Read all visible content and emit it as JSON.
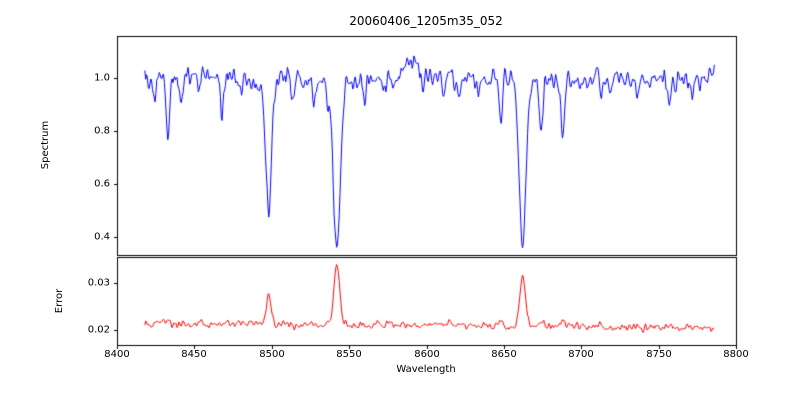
{
  "chart_data": {
    "type": "line",
    "title": "20060406_1205m35_052",
    "xlabel": "Wavelength",
    "grid": false,
    "legend": "none",
    "xlim": [
      8400,
      8800
    ],
    "x_ticks": [
      "8400",
      "8450",
      "8500",
      "8550",
      "8600",
      "8650",
      "8700",
      "8750",
      "8800"
    ],
    "x_sample": {
      "start": 8418,
      "end": 8786,
      "n": 672
    },
    "panels": [
      {
        "ylabel": "Spectrum",
        "color": "#0000ff",
        "ylim": [
          0.33,
          1.16
        ],
        "y_ticks": [
          "0.4",
          "0.6",
          "0.8",
          "1.0"
        ],
        "series": {
          "name": "spectrum",
          "seed": 7,
          "baseline_start": 1.0,
          "baseline_end": 0.995,
          "noise_sigma": 0.02,
          "absorption_lines": [
            {
              "center": 8424,
              "depth": 0.1,
              "width": 0.9
            },
            {
              "center": 8433,
              "depth": 0.22,
              "width": 1.1
            },
            {
              "center": 8441,
              "depth": 0.09,
              "width": 0.9
            },
            {
              "center": 8453,
              "depth": 0.06,
              "width": 0.9
            },
            {
              "center": 8468,
              "depth": 0.13,
              "width": 1.0
            },
            {
              "center": 8480,
              "depth": 0.06,
              "width": 0.9
            },
            {
              "center": 8492,
              "depth": 0.08,
              "width": 0.9
            },
            {
              "center": 8498.02,
              "depth": 0.5,
              "width": 1.9
            },
            {
              "center": 8514,
              "depth": 0.1,
              "width": 1.0
            },
            {
              "center": 8527,
              "depth": 0.08,
              "width": 0.9
            },
            {
              "center": 8536,
              "depth": 0.1,
              "width": 1.0
            },
            {
              "center": 8542.09,
              "depth": 0.64,
              "width": 2.3
            },
            {
              "center": 8560,
              "depth": 0.08,
              "width": 0.9
            },
            {
              "center": 8572,
              "depth": 0.06,
              "width": 0.9
            },
            {
              "center": 8598,
              "depth": 0.07,
              "width": 0.9
            },
            {
              "center": 8611,
              "depth": 0.07,
              "width": 0.9
            },
            {
              "center": 8621,
              "depth": 0.09,
              "width": 1.0
            },
            {
              "center": 8634,
              "depth": 0.07,
              "width": 0.9
            },
            {
              "center": 8648,
              "depth": 0.16,
              "width": 1.1
            },
            {
              "center": 8662.14,
              "depth": 0.62,
              "width": 2.2
            },
            {
              "center": 8674,
              "depth": 0.19,
              "width": 1.1
            },
            {
              "center": 8688,
              "depth": 0.24,
              "width": 1.2
            },
            {
              "center": 8713,
              "depth": 0.08,
              "width": 0.9
            },
            {
              "center": 8736,
              "depth": 0.07,
              "width": 0.9
            },
            {
              "center": 8757,
              "depth": 0.1,
              "width": 1.0
            },
            {
              "center": 8772,
              "depth": 0.07,
              "width": 0.9
            }
          ],
          "peaks": [
            {
              "center": 8590,
              "height": 0.07,
              "width": 5
            }
          ]
        }
      },
      {
        "ylabel": "Error",
        "color": "#ff0000",
        "ylim": [
          0.0168,
          0.0356
        ],
        "y_ticks": [
          "0.02",
          "0.03"
        ],
        "series": {
          "name": "error",
          "seed": 13,
          "baseline_start": 0.0215,
          "baseline_end": 0.0205,
          "noise_sigma": 0.00045,
          "absorption_lines": [],
          "peaks": [
            {
              "center": 8433,
              "height": 0.0008,
              "width": 1.2
            },
            {
              "center": 8498.02,
              "height": 0.0062,
              "width": 1.6
            },
            {
              "center": 8542.09,
              "height": 0.0125,
              "width": 1.9
            },
            {
              "center": 8662.14,
              "height": 0.0105,
              "width": 1.8
            },
            {
              "center": 8674,
              "height": 0.001,
              "width": 1.2
            },
            {
              "center": 8688,
              "height": 0.0014,
              "width": 1.2
            }
          ]
        }
      }
    ]
  }
}
